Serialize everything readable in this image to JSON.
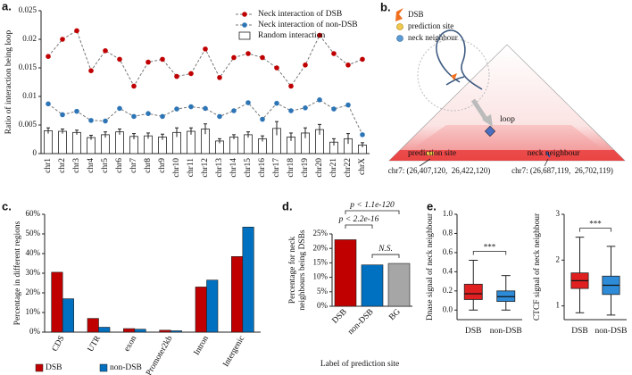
{
  "chart_data": [
    {
      "type": "combo",
      "label": "a.",
      "ylabel": "Ratio of interaction being loop",
      "legend": "upper right",
      "categories": [
        "chr1",
        "chr2",
        "chr3",
        "chr4",
        "chr5",
        "chr6",
        "chr7",
        "chr8",
        "chr9",
        "chr10",
        "chr11",
        "chr12",
        "chr13",
        "chr14",
        "chr15",
        "chr16",
        "chr17",
        "chr18",
        "chr19",
        "chr20",
        "chr21",
        "chr22",
        "chrX"
      ],
      "ylim": [
        0,
        0.025
      ],
      "yticks": [
        0,
        0.005,
        0.01,
        0.015,
        0.02,
        0.025
      ],
      "series": [
        {
          "name": "Neck interaction of DSB",
          "style": "line",
          "color": "#c00000",
          "values": [
            0.017,
            0.02,
            0.0215,
            0.0145,
            0.018,
            0.0165,
            0.0118,
            0.016,
            0.0165,
            0.0135,
            0.014,
            0.0183,
            0.0133,
            0.0168,
            0.0175,
            0.0168,
            0.015,
            0.0118,
            0.0155,
            0.0207,
            0.0175,
            0.0155,
            0.0165
          ]
        },
        {
          "name": "Neck interaction of non-DSB",
          "style": "line",
          "color": "#2e75b6",
          "values": [
            0.0087,
            0.0068,
            0.0074,
            0.0058,
            0.0057,
            0.0079,
            0.0065,
            0.007,
            0.0065,
            0.0078,
            0.0082,
            0.0079,
            0.0065,
            0.0075,
            0.0089,
            0.006,
            0.0088,
            0.0075,
            0.008,
            0.0094,
            0.0078,
            0.0085,
            0.0033
          ]
        },
        {
          "name": "Random interaction",
          "style": "bar",
          "color": "#ffffff",
          "values": [
            0.004,
            0.0039,
            0.0037,
            0.0028,
            0.0033,
            0.0038,
            0.003,
            0.0031,
            0.0029,
            0.0037,
            0.0039,
            0.0043,
            0.0022,
            0.0029,
            0.0033,
            0.0026,
            0.0044,
            0.0029,
            0.0036,
            0.0042,
            0.002,
            0.0026,
            0.0015
          ],
          "errors": [
            0.0005,
            0.0004,
            0.0004,
            0.0004,
            0.0005,
            0.0005,
            0.0005,
            0.0005,
            0.0005,
            0.0008,
            0.0006,
            0.0009,
            0.0004,
            0.0004,
            0.0005,
            0.0005,
            0.0012,
            0.0007,
            0.0009,
            0.0009,
            0.0006,
            0.0009,
            0.0004
          ]
        }
      ]
    },
    {
      "type": "bar",
      "label": "c.",
      "ylabel": "Percentage in different regions",
      "legend": "bottom",
      "categories": [
        "CDS",
        "UTR",
        "exon",
        "Promoter2kb",
        "Intron",
        "Intergenic"
      ],
      "ylim": [
        0,
        60
      ],
      "yticks": [
        {
          "value": 0,
          "label": "0%"
        },
        {
          "value": 10,
          "label": "10%"
        },
        {
          "value": 20,
          "label": "20%"
        },
        {
          "value": 30,
          "label": "30%"
        },
        {
          "value": 40,
          "label": "40%"
        },
        {
          "value": 50,
          "label": "50%"
        },
        {
          "value": 60,
          "label": "60%"
        }
      ],
      "series": [
        {
          "name": "DSB",
          "color": "#c00000",
          "values": [
            30.5,
            7,
            1.8,
            1,
            23,
            38.5
          ]
        },
        {
          "name": "non-DSB",
          "color": "#0070c0",
          "values": [
            17,
            2.5,
            1.5,
            0.7,
            26.5,
            53.5
          ]
        }
      ]
    },
    {
      "type": "bar",
      "label": "d.",
      "ylabel": [
        "Percentage for neck",
        "neighbours being DSBs"
      ],
      "xlabel": "Label of prediction site",
      "categories": [
        "DSB",
        "non-DSB",
        "BG"
      ],
      "values": [
        23,
        14.3,
        14.8
      ],
      "colors": [
        "#c00000",
        "#0070c0",
        "#a6a6a6"
      ],
      "ylim": [
        0,
        25
      ],
      "yticks": [
        {
          "value": 0,
          "label": "0%"
        },
        {
          "value": 5,
          "label": "5%"
        },
        {
          "value": 10,
          "label": "10%"
        },
        {
          "value": 15,
          "label": "15%"
        },
        {
          "value": 20,
          "label": "20%"
        },
        {
          "value": 25,
          "label": "25%"
        }
      ],
      "annotations": [
        "p < 1.1e-120",
        "p < 2.2e-16",
        "N.S."
      ]
    },
    {
      "type": "box",
      "label": "e.",
      "ylabel": "Dnase signal of neck neighbour",
      "categories": [
        "DSB",
        "non-DSB"
      ],
      "colors": [
        "#e02020",
        "#2e8bd8"
      ],
      "boxes": [
        {
          "whislo": 0,
          "q1": 0.11,
          "median": 0.17,
          "q3": 0.27,
          "whishi": 0.52
        },
        {
          "whislo": 0,
          "q1": 0.09,
          "median": 0.14,
          "q3": 0.2,
          "whishi": 0.36
        }
      ],
      "ylim": [
        -0.1,
        1.0
      ],
      "yticks": [
        {
          "value": 0,
          "label": "0.0"
        },
        {
          "value": 0.2,
          "label": "0.2"
        },
        {
          "value": 0.4,
          "label": "0.4"
        },
        {
          "value": 0.6,
          "label": "0.6"
        },
        {
          "value": 0.8,
          "label": "0.8"
        },
        {
          "value": 1,
          "label": "1.0"
        }
      ],
      "annotations": [
        "***"
      ]
    },
    {
      "type": "box",
      "ylabel": "CTCF signal of neck neighbour",
      "categories": [
        "DSB",
        "non-DSB"
      ],
      "colors": [
        "#e02020",
        "#2e8bd8"
      ],
      "boxes": [
        {
          "whislo": 0.85,
          "q1": 1.38,
          "median": 1.55,
          "q3": 1.72,
          "whishi": 2.5
        },
        {
          "whislo": 0.8,
          "q1": 1.25,
          "median": 1.45,
          "q3": 1.65,
          "whishi": 2.3
        }
      ],
      "ylim": [
        0.7,
        3.0
      ],
      "yticks": [
        1,
        2,
        3
      ],
      "annotations": [
        "***"
      ]
    }
  ],
  "diagram": {
    "label": "b.",
    "legend": [
      "DSB",
      "prediction site",
      "neck neighbour"
    ],
    "loop": "loop",
    "sites": [
      "prediction site",
      "neck neighbour"
    ],
    "coordinates": [
      "chr7: (26,407,120,  26,422,120)",
      "chr7: (26,687,119,  26,702,119)"
    ]
  }
}
